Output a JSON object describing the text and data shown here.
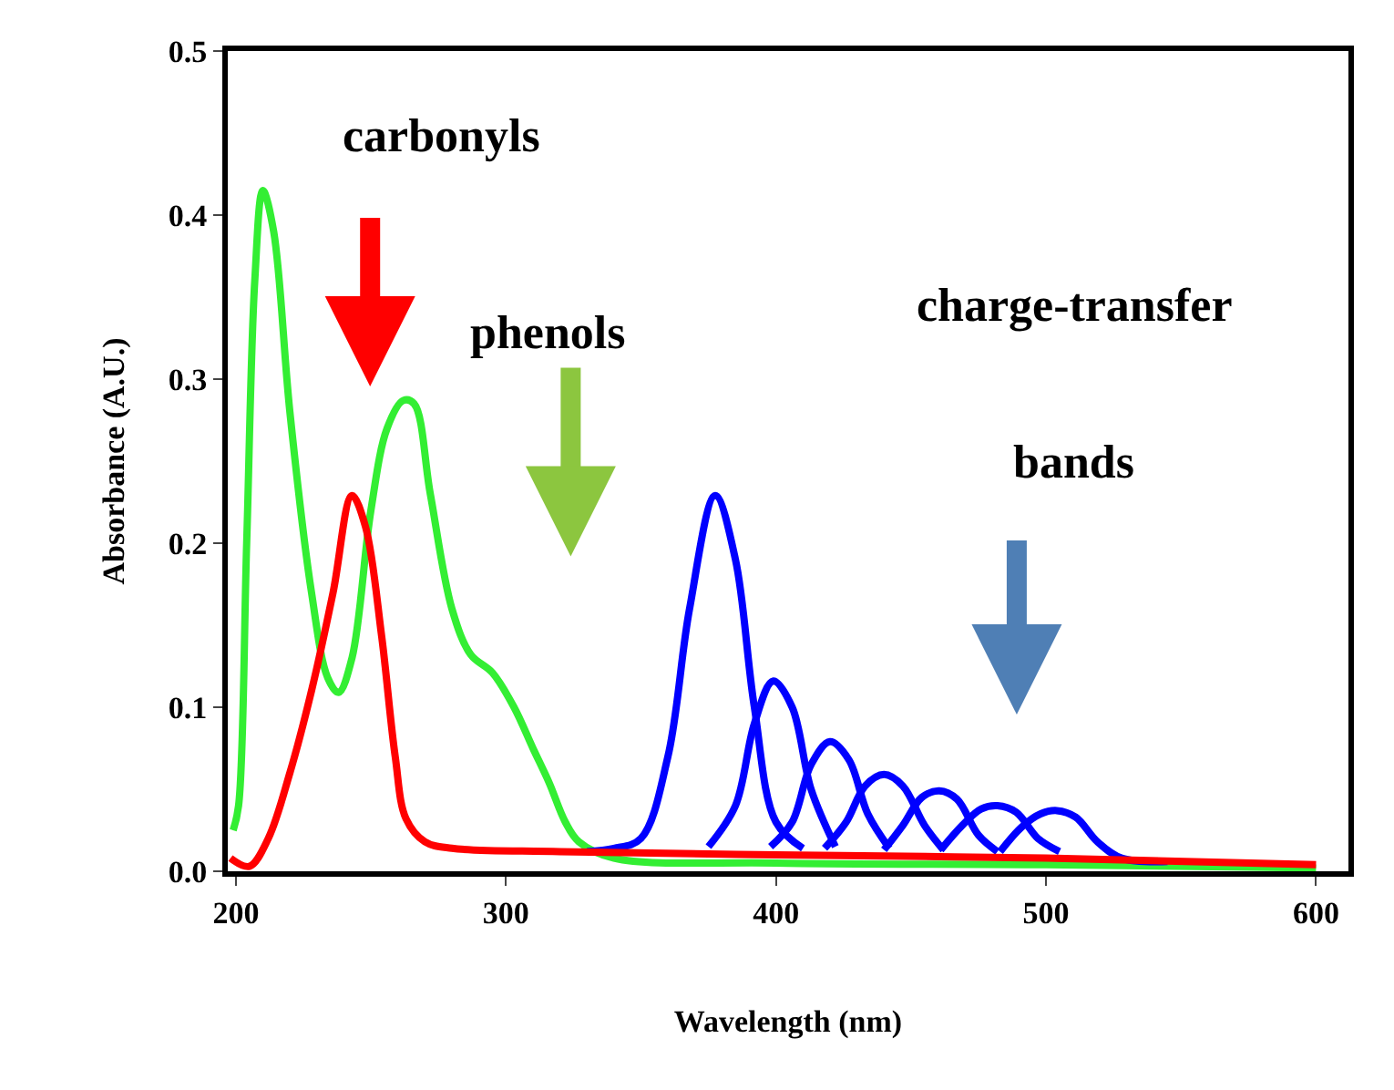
{
  "chart_data": {
    "type": "line",
    "xlabel": "Wavelength (nm)",
    "ylabel": "Absorbance (A.U.)",
    "xlim": [
      197,
      612
    ],
    "xticks": [
      200,
      300,
      400,
      500,
      600
    ],
    "ylim": [
      0,
      0.5
    ],
    "yticks": [
      {
        "value": 0,
        "label": "0.0"
      },
      0.1,
      0.2,
      0.3,
      0.4,
      0.5
    ],
    "marker": "none",
    "line_style": "solid",
    "annotations": [
      "carbonyls",
      "phenols",
      "charge-transfer",
      "bands"
    ],
    "series": [
      {
        "color": "#33ee33",
        "x": [
          199,
          201,
          204,
          207,
          210,
          214,
          220,
          228,
          234,
          238,
          243,
          250,
          256,
          262,
          266,
          272,
          280,
          287,
          295,
          303,
          310,
          316,
          322,
          327,
          340,
          400,
          500,
          600
        ],
        "values": [
          0.025,
          0.04,
          0.2,
          0.36,
          0.415,
          0.39,
          0.28,
          0.17,
          0.118,
          0.109,
          0.13,
          0.22,
          0.27,
          0.287,
          0.285,
          0.23,
          0.16,
          0.132,
          0.121,
          0.1,
          0.075,
          0.054,
          0.03,
          0.018,
          0.008,
          0.005,
          0.004,
          0.002
        ]
      },
      {
        "color": "#0000ff",
        "x": [
          330,
          340,
          350,
          360,
          368,
          377.5,
          385,
          392,
          400,
          410
        ],
        "values": [
          0.012,
          0.014,
          0.02,
          0.07,
          0.16,
          0.229,
          0.19,
          0.1,
          0.03,
          0.014
        ]
      },
      {
        "color": "#0000ff",
        "x": [
          375,
          385,
          392,
          399,
          406,
          413,
          422
        ],
        "values": [
          0.015,
          0.04,
          0.09,
          0.116,
          0.1,
          0.05,
          0.015
        ]
      },
      {
        "color": "#0000ff",
        "x": [
          398,
          406,
          413,
          420,
          427,
          434,
          442
        ],
        "values": [
          0.015,
          0.03,
          0.065,
          0.079,
          0.068,
          0.035,
          0.014
        ]
      },
      {
        "color": "#0000ff",
        "x": [
          418,
          426,
          433,
          440,
          447,
          455,
          462
        ],
        "values": [
          0.014,
          0.03,
          0.052,
          0.059,
          0.052,
          0.028,
          0.013
        ]
      },
      {
        "color": "#0000ff",
        "x": [
          440,
          447,
          454,
          460.5,
          467,
          475,
          482
        ],
        "values": [
          0.013,
          0.028,
          0.045,
          0.049,
          0.044,
          0.022,
          0.012
        ]
      },
      {
        "color": "#0000ff",
        "x": [
          461,
          469,
          476,
          482,
          489,
          497,
          505
        ],
        "values": [
          0.013,
          0.028,
          0.038,
          0.04,
          0.036,
          0.02,
          0.012
        ]
      },
      {
        "color": "#0000ff",
        "x": [
          483,
          491,
          498,
          504,
          511,
          519,
          528,
          545
        ],
        "values": [
          0.012,
          0.027,
          0.035,
          0.037,
          0.033,
          0.018,
          0.008,
          0.006
        ]
      },
      {
        "color": "#ff0000",
        "x": [
          198,
          205,
          212,
          220,
          228,
          236,
          243,
          248,
          254,
          259,
          263,
          270,
          280,
          320,
          400,
          500,
          600
        ],
        "values": [
          0.008,
          0.003,
          0.02,
          0.06,
          0.11,
          0.17,
          0.229,
          0.21,
          0.143,
          0.07,
          0.032,
          0.018,
          0.014,
          0.012,
          0.01,
          0.008,
          0.004
        ]
      }
    ]
  }
}
